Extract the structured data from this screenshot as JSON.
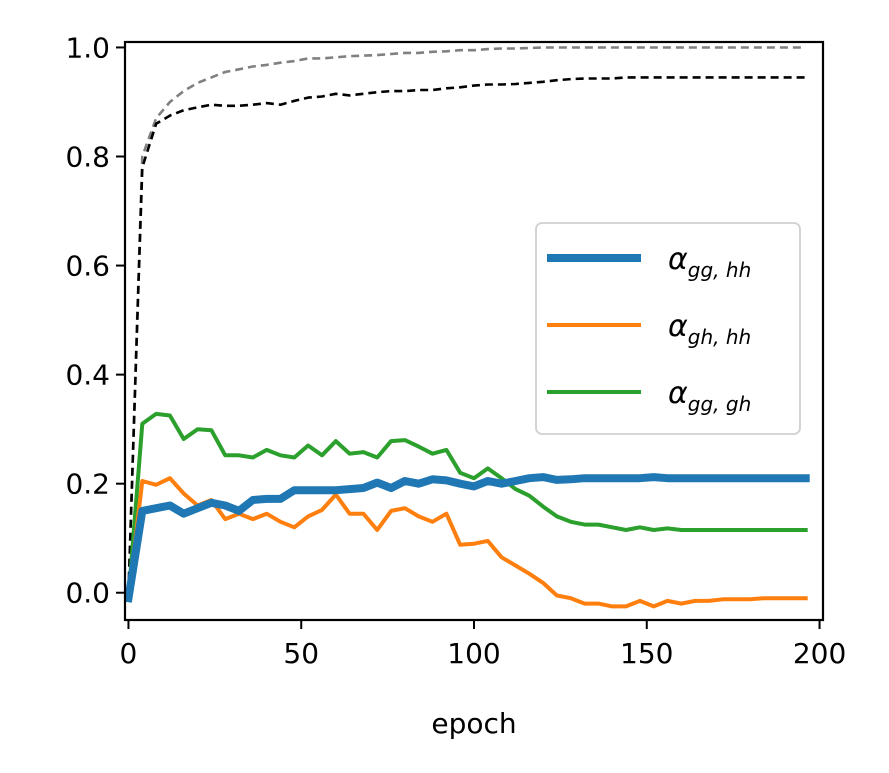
{
  "chart_data": {
    "type": "line",
    "title": "",
    "xlabel": "epoch",
    "ylabel": "",
    "xlim": [
      -1,
      201
    ],
    "ylim": [
      -0.05,
      1.01
    ],
    "xticks": [
      0,
      50,
      100,
      150,
      200
    ],
    "xtick_labels": [
      "0",
      "50",
      "100",
      "150",
      "200"
    ],
    "yticks": [
      0.0,
      0.2,
      0.4,
      0.6,
      0.8,
      1.0
    ],
    "ytick_labels": [
      "0.0",
      "0.2",
      "0.4",
      "0.6",
      "0.8",
      "1.0"
    ],
    "legend_position": "center-right",
    "series": [
      {
        "name": "alpha_gg_hh",
        "legend_symbol": "α",
        "legend_subscript": "gg, hh",
        "color": "#1f77b4",
        "style": "solid-thick",
        "x": [
          0,
          4,
          8,
          12,
          16,
          20,
          24,
          28,
          32,
          36,
          40,
          44,
          48,
          52,
          56,
          60,
          64,
          68,
          72,
          76,
          80,
          84,
          88,
          92,
          96,
          100,
          104,
          108,
          112,
          116,
          120,
          124,
          128,
          132,
          136,
          140,
          144,
          148,
          152,
          156,
          160,
          164,
          168,
          172,
          176,
          180,
          184,
          188,
          192,
          196
        ],
        "values": [
          -0.01,
          0.15,
          0.155,
          0.16,
          0.145,
          0.155,
          0.165,
          0.16,
          0.15,
          0.17,
          0.172,
          0.172,
          0.188,
          0.188,
          0.188,
          0.188,
          0.19,
          0.192,
          0.202,
          0.192,
          0.205,
          0.2,
          0.208,
          0.206,
          0.2,
          0.195,
          0.205,
          0.2,
          0.205,
          0.21,
          0.212,
          0.207,
          0.208,
          0.21,
          0.21,
          0.21,
          0.21,
          0.21,
          0.212,
          0.21,
          0.21,
          0.21,
          0.21,
          0.21,
          0.21,
          0.21,
          0.21,
          0.21,
          0.21,
          0.21
        ]
      },
      {
        "name": "alpha_gh_hh",
        "legend_symbol": "α",
        "legend_subscript": "gh, hh",
        "color": "#ff7f0e",
        "style": "solid",
        "x": [
          0,
          4,
          8,
          12,
          16,
          20,
          24,
          28,
          32,
          36,
          40,
          44,
          48,
          52,
          56,
          60,
          64,
          68,
          72,
          76,
          80,
          84,
          88,
          92,
          96,
          100,
          104,
          108,
          112,
          116,
          120,
          124,
          128,
          132,
          136,
          140,
          144,
          148,
          152,
          156,
          160,
          164,
          168,
          172,
          176,
          180,
          184,
          188,
          192,
          196
        ],
        "values": [
          -0.01,
          0.205,
          0.198,
          0.21,
          0.182,
          0.16,
          0.17,
          0.135,
          0.145,
          0.135,
          0.145,
          0.13,
          0.12,
          0.14,
          0.152,
          0.18,
          0.145,
          0.145,
          0.115,
          0.15,
          0.155,
          0.14,
          0.13,
          0.145,
          0.088,
          0.09,
          0.095,
          0.065,
          0.05,
          0.035,
          0.018,
          -0.005,
          -0.01,
          -0.02,
          -0.02,
          -0.025,
          -0.025,
          -0.015,
          -0.025,
          -0.015,
          -0.02,
          -0.015,
          -0.015,
          -0.012,
          -0.012,
          -0.012,
          -0.01,
          -0.01,
          -0.01,
          -0.01
        ]
      },
      {
        "name": "alpha_gg_gh",
        "legend_symbol": "α",
        "legend_subscript": "gg, gh",
        "color": "#2ca02c",
        "style": "solid",
        "x": [
          0,
          4,
          8,
          12,
          16,
          20,
          24,
          28,
          32,
          36,
          40,
          44,
          48,
          52,
          56,
          60,
          64,
          68,
          72,
          76,
          80,
          84,
          88,
          92,
          96,
          100,
          104,
          108,
          112,
          116,
          120,
          124,
          128,
          132,
          136,
          140,
          144,
          148,
          152,
          156,
          160,
          164,
          168,
          172,
          176,
          180,
          184,
          188,
          192,
          196
        ],
        "values": [
          -0.01,
          0.31,
          0.328,
          0.325,
          0.282,
          0.3,
          0.298,
          0.252,
          0.252,
          0.248,
          0.262,
          0.252,
          0.248,
          0.27,
          0.252,
          0.278,
          0.255,
          0.258,
          0.248,
          0.278,
          0.28,
          0.268,
          0.255,
          0.262,
          0.22,
          0.21,
          0.228,
          0.21,
          0.19,
          0.178,
          0.158,
          0.14,
          0.13,
          0.125,
          0.125,
          0.12,
          0.115,
          0.12,
          0.115,
          0.118,
          0.115,
          0.115,
          0.115,
          0.115,
          0.115,
          0.115,
          0.115,
          0.115,
          0.115,
          0.115
        ]
      },
      {
        "name": "upper-gray-dashed",
        "color": "#808080",
        "style": "dashed",
        "x": [
          0,
          4,
          8,
          12,
          16,
          20,
          24,
          28,
          32,
          36,
          40,
          44,
          48,
          52,
          56,
          60,
          64,
          68,
          72,
          76,
          80,
          84,
          88,
          92,
          96,
          100,
          104,
          108,
          112,
          116,
          120,
          124,
          128,
          132,
          136,
          140,
          144,
          148,
          152,
          156,
          160,
          164,
          168,
          172,
          176,
          180,
          184,
          188,
          192,
          196
        ],
        "values": [
          0.0,
          0.8,
          0.87,
          0.9,
          0.92,
          0.935,
          0.945,
          0.955,
          0.96,
          0.965,
          0.968,
          0.972,
          0.975,
          0.98,
          0.98,
          0.982,
          0.984,
          0.985,
          0.986,
          0.988,
          0.99,
          0.99,
          0.992,
          0.993,
          0.995,
          0.995,
          0.997,
          0.998,
          0.998,
          0.999,
          1.0,
          1.0,
          1.0,
          1.0,
          1.0,
          1.0,
          1.0,
          1.0,
          1.0,
          1.0,
          1.0,
          1.0,
          1.0,
          1.0,
          1.0,
          1.0,
          1.0,
          1.0,
          1.0,
          1.0
        ]
      },
      {
        "name": "lower-black-dashed",
        "color": "#000000",
        "style": "dashed",
        "x": [
          0,
          4,
          8,
          12,
          16,
          20,
          24,
          28,
          32,
          36,
          40,
          44,
          48,
          52,
          56,
          60,
          64,
          68,
          72,
          76,
          80,
          84,
          88,
          92,
          96,
          100,
          104,
          108,
          112,
          116,
          120,
          124,
          128,
          132,
          136,
          140,
          144,
          148,
          152,
          156,
          160,
          164,
          168,
          172,
          176,
          180,
          184,
          188,
          192,
          196
        ],
        "values": [
          0.0,
          0.78,
          0.86,
          0.875,
          0.885,
          0.89,
          0.895,
          0.893,
          0.893,
          0.895,
          0.898,
          0.895,
          0.902,
          0.908,
          0.91,
          0.915,
          0.912,
          0.915,
          0.918,
          0.92,
          0.92,
          0.922,
          0.922,
          0.925,
          0.927,
          0.93,
          0.932,
          0.932,
          0.933,
          0.935,
          0.937,
          0.94,
          0.942,
          0.943,
          0.943,
          0.943,
          0.945,
          0.945,
          0.945,
          0.945,
          0.945,
          0.945,
          0.945,
          0.945,
          0.945,
          0.945,
          0.945,
          0.945,
          0.945,
          0.945
        ]
      }
    ]
  }
}
